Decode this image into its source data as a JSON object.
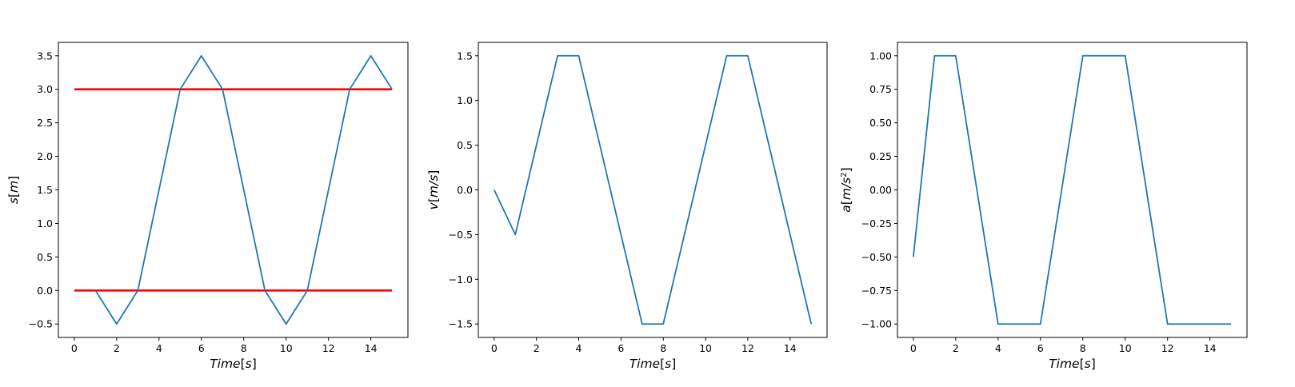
{
  "chart_data": [
    {
      "type": "line",
      "xlabel": {
        "main": "Time",
        "unit": "s"
      },
      "ylabel": {
        "main": "s",
        "unit": "m",
        "power": ""
      },
      "xlim": [
        -0.75,
        15.75
      ],
      "ylim": [
        -0.7,
        3.7
      ],
      "xticks": [
        0,
        2,
        4,
        6,
        8,
        10,
        12,
        14
      ],
      "yticks": [
        -0.5,
        0.0,
        0.5,
        1.0,
        1.5,
        2.0,
        2.5,
        3.0,
        3.5
      ],
      "ytick_labels": [
        "−0.5",
        "0.0",
        "0.5",
        "1.0",
        "1.5",
        "2.0",
        "2.5",
        "3.0",
        "3.5"
      ],
      "grid": false,
      "series": [
        {
          "color": "#1f77b4",
          "x": [
            1,
            2,
            3,
            4,
            5,
            6,
            7,
            8,
            9,
            10,
            11,
            12,
            13,
            14,
            15
          ],
          "y": [
            0.0,
            -0.5,
            0.0,
            1.5,
            3.0,
            3.5,
            3.0,
            1.5,
            0.0,
            -0.5,
            0.0,
            1.5,
            3.0,
            3.5,
            3.0
          ]
        }
      ],
      "hlines": [
        {
          "y": 0.0,
          "x": [
            0,
            15
          ],
          "color": "#ff0000"
        },
        {
          "y": 3.0,
          "x": [
            0,
            15
          ],
          "color": "#ff0000"
        }
      ]
    },
    {
      "type": "line",
      "xlabel": {
        "main": "Time",
        "unit": "s"
      },
      "ylabel": {
        "main": "v",
        "unit": "m/s",
        "power": ""
      },
      "xlim": [
        -0.75,
        15.75
      ],
      "ylim": [
        -1.65,
        1.65
      ],
      "xticks": [
        0,
        2,
        4,
        6,
        8,
        10,
        12,
        14
      ],
      "yticks": [
        -1.5,
        -1.0,
        -0.5,
        0.0,
        0.5,
        1.0,
        1.5
      ],
      "ytick_labels": [
        "−1.5",
        "−1.0",
        "−0.5",
        "0.0",
        "0.5",
        "1.0",
        "1.5"
      ],
      "grid": false,
      "series": [
        {
          "color": "#1f77b4",
          "x": [
            0,
            1,
            2,
            3,
            4,
            5,
            6,
            7,
            8,
            9,
            10,
            11,
            12,
            13,
            14,
            15
          ],
          "y": [
            0.0,
            -0.5,
            0.5,
            1.5,
            1.5,
            0.5,
            -0.5,
            -1.5,
            -1.5,
            -0.5,
            0.5,
            1.5,
            1.5,
            0.5,
            -0.5,
            -1.5
          ]
        }
      ],
      "hlines": []
    },
    {
      "type": "line",
      "xlabel": {
        "main": "Time",
        "unit": "s"
      },
      "ylabel": {
        "main": "a",
        "unit": "m/s",
        "power": "2"
      },
      "xlim": [
        -0.75,
        15.75
      ],
      "ylim": [
        -1.1,
        1.1
      ],
      "xticks": [
        0,
        2,
        4,
        6,
        8,
        10,
        12,
        14
      ],
      "yticks": [
        -1.0,
        -0.75,
        -0.5,
        -0.25,
        0.0,
        0.25,
        0.5,
        0.75,
        1.0
      ],
      "ytick_labels": [
        "−1.00",
        "−0.75",
        "−0.50",
        "−0.25",
        "0.00",
        "0.25",
        "0.50",
        "0.75",
        "1.00"
      ],
      "grid": false,
      "series": [
        {
          "color": "#1f77b4",
          "x": [
            0,
            1,
            2,
            3,
            4,
            5,
            6,
            7,
            8,
            9,
            10,
            11,
            12,
            13,
            14,
            15
          ],
          "y": [
            -0.5,
            1.0,
            1.0,
            0.0,
            -1.0,
            -1.0,
            -1.0,
            0.0,
            1.0,
            1.0,
            1.0,
            0.0,
            -1.0,
            -1.0,
            -1.0,
            -1.0
          ]
        }
      ],
      "hlines": []
    }
  ]
}
